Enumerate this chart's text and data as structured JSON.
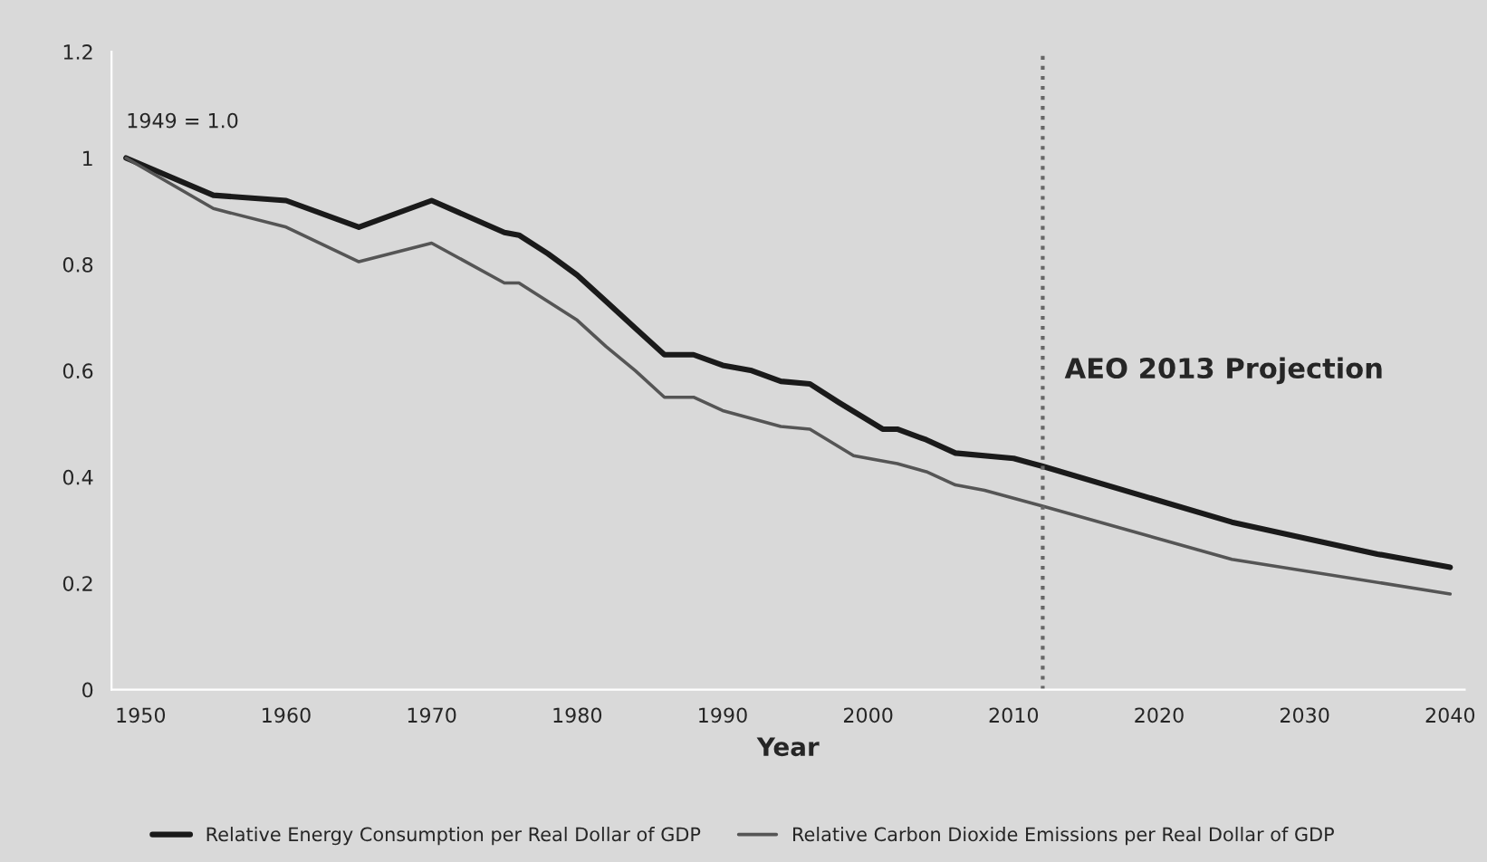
{
  "chart_data": {
    "type": "line",
    "xlabel": "Year",
    "xlim": [
      1948,
      2041
    ],
    "xticks": [
      1950,
      1960,
      1970,
      1980,
      1990,
      2000,
      2010,
      2020,
      2030,
      2040
    ],
    "ylim": [
      0,
      1.2
    ],
    "yticks": [
      0,
      0.2,
      0.4,
      0.6,
      0.8,
      1,
      1.2
    ],
    "grid": false,
    "legend": "bottom",
    "line_style": "solid",
    "marker": "none",
    "annotations": [
      {
        "text": "1949 = 1.0",
        "x": 1949,
        "y": 1.0
      }
    ],
    "ref_lines": [
      {
        "axis": "x",
        "value": 2012,
        "label": "AEO 2013 Projection",
        "color": "#666666",
        "line_style": "dotted"
      }
    ],
    "series": [
      {
        "name": "Relative Energy Consumption per Real Dollar of GDP",
        "color": "#1a1a1a",
        "x": [
          1949,
          1955,
          1960,
          1965,
          1970,
          1975,
          1976,
          1978,
          1980,
          1982,
          1984,
          1986,
          1988,
          1990,
          1992,
          1994,
          1996,
          1998,
          2001,
          2002,
          2004,
          2006,
          2010,
          2012,
          2025,
          2035,
          2040
        ],
        "values": [
          1.0,
          0.93,
          0.92,
          0.87,
          0.92,
          0.86,
          0.855,
          0.82,
          0.78,
          0.73,
          0.68,
          0.63,
          0.63,
          0.61,
          0.6,
          0.58,
          0.575,
          0.54,
          0.49,
          0.49,
          0.47,
          0.445,
          0.435,
          0.42,
          0.315,
          0.255,
          0.23
        ]
      },
      {
        "name": "Relative Carbon Dioxide Emissions per Real Dollar of GDP",
        "color": "#555555",
        "x": [
          1949,
          1955,
          1960,
          1965,
          1970,
          1975,
          1976,
          1978,
          1980,
          1982,
          1984,
          1986,
          1988,
          1990,
          1994,
          1996,
          1999,
          2002,
          2004,
          2006,
          2008,
          2010,
          2012,
          2025,
          2040
        ],
        "values": [
          1.0,
          0.905,
          0.87,
          0.805,
          0.84,
          0.765,
          0.765,
          0.73,
          0.695,
          0.645,
          0.6,
          0.55,
          0.55,
          0.525,
          0.495,
          0.49,
          0.44,
          0.425,
          0.41,
          0.385,
          0.375,
          0.36,
          0.345,
          0.245,
          0.18
        ]
      }
    ]
  }
}
